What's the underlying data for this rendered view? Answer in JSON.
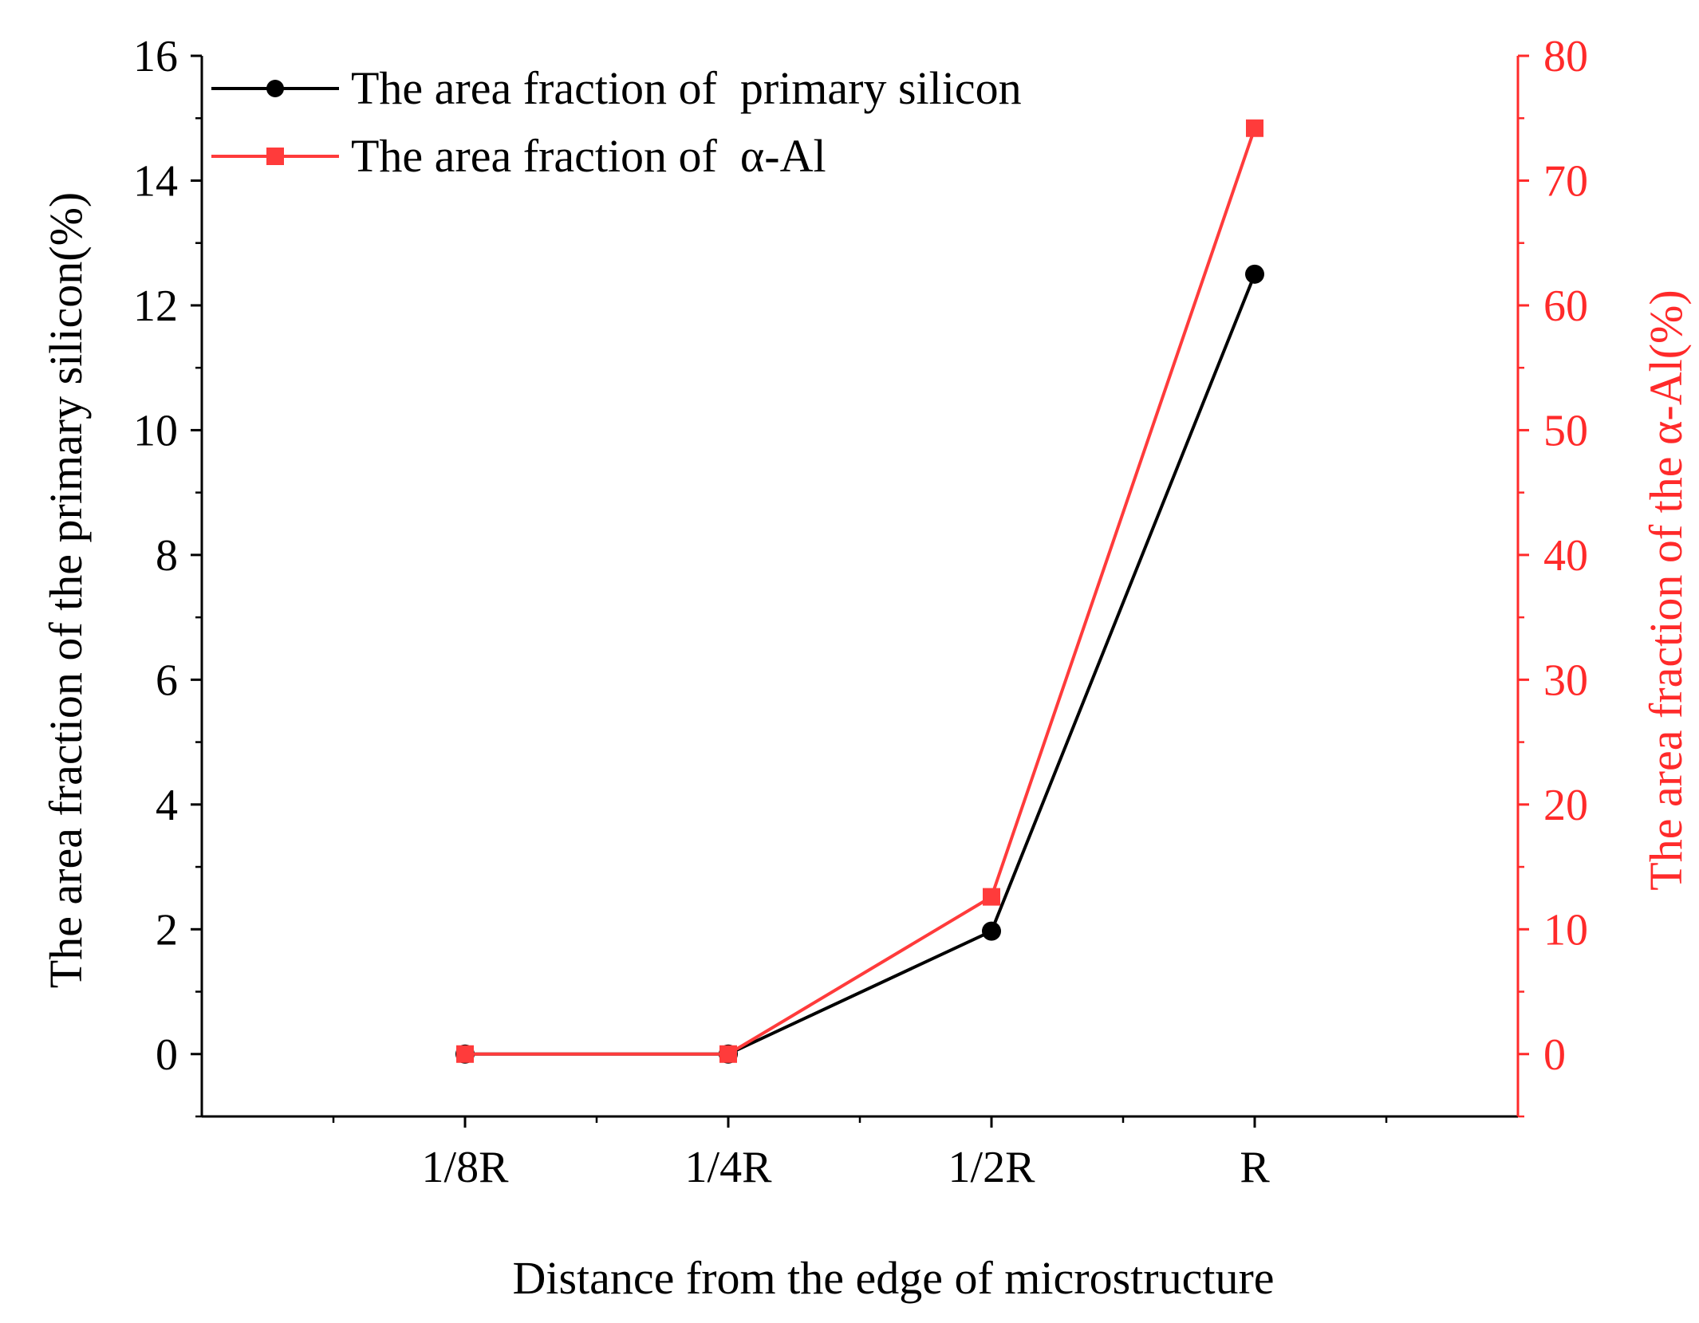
{
  "chart_data": {
    "type": "line",
    "categories": [
      "1/8R",
      "1/4R",
      "1/2R",
      "R"
    ],
    "xlabel": "Distance from the edge of microstructure",
    "ylabel_left": "The area fraction of the primary silicon(%)",
    "ylabel_right": "The area fraction of the α-Al(%)",
    "y_left": {
      "range": [
        -1,
        16
      ],
      "ticks": [
        0,
        2,
        4,
        6,
        8,
        10,
        12,
        14,
        16
      ],
      "tick_labels": [
        "0",
        "2",
        "4",
        "6",
        "8",
        "10",
        "12",
        "14",
        "16"
      ]
    },
    "y_right": {
      "range": [
        -5,
        80
      ],
      "ticks": [
        0,
        10,
        20,
        30,
        40,
        50,
        60,
        70,
        80
      ],
      "tick_labels": [
        "0",
        "10",
        "20",
        "30",
        "40",
        "50",
        "60",
        "70",
        "80"
      ]
    },
    "legend_position": "top-left",
    "series": [
      {
        "name": "The area fraction of  primary silicon",
        "axis": "left",
        "marker": "circle",
        "color": "#000000",
        "values": [
          0,
          0,
          1.97,
          12.5
        ]
      },
      {
        "name": "The area fraction of  α-Al",
        "axis": "right",
        "marker": "square",
        "color": "#ff3b3b",
        "values": [
          0,
          0,
          12.6,
          74.2
        ]
      }
    ],
    "right_axis_color": "#ff2a2a"
  }
}
